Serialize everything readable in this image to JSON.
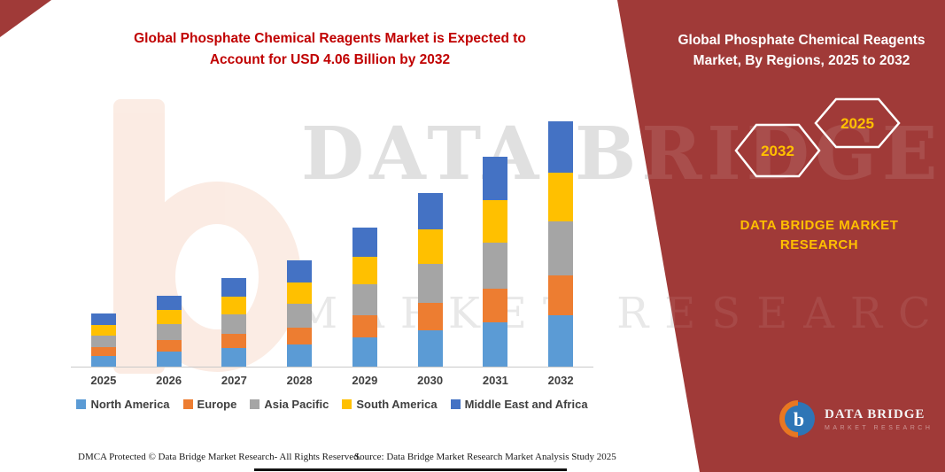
{
  "header": {
    "title_line1": "Global Phosphate Chemical Reagents Market is Expected to",
    "title_line2": "Account for USD 4.06 Billion by 2032"
  },
  "panel": {
    "title_line1": "Global Phosphate Chemical Reagents",
    "title_line2": "Market, By Regions, 2025 to 2032",
    "hexagon_left_year": "2032",
    "hexagon_right_year": "2025",
    "brand_line1": "DATA BRIDGE MARKET",
    "brand_line2": "RESEARCH",
    "logo_text": "DATA BRIDGE",
    "logo_subtext": "MARKET RESEARCH",
    "logo_monogram": "b",
    "bg_color": "#A03A38",
    "accent_gold": "#FFC000"
  },
  "watermark": {
    "line1": "DATA BRIDGE",
    "line2": "MARKET RESEARCH"
  },
  "footer": {
    "left": "DMCA Protected © Data Bridge Market Research-  All Rights Reserved.",
    "right": "Source: Data Bridge Market Research  Market Analysis Study 2025"
  },
  "chart_data": {
    "type": "bar",
    "stacked": true,
    "title": "Global Phosphate Chemical Reagents Market is Expected to Account for USD 4.06 Billion by 2032",
    "unit": "USD Billion",
    "categories": [
      "2025",
      "2026",
      "2027",
      "2028",
      "2029",
      "2030",
      "2031",
      "2032"
    ],
    "series": [
      {
        "name": "North America",
        "color": "#5B9BD5",
        "values": [
          0.18,
          0.25,
          0.31,
          0.37,
          0.49,
          0.61,
          0.73,
          0.85
        ]
      },
      {
        "name": "Europe",
        "color": "#ED7D31",
        "values": [
          0.14,
          0.19,
          0.23,
          0.28,
          0.37,
          0.46,
          0.56,
          0.66
        ]
      },
      {
        "name": "Asia Pacific",
        "color": "#A5A5A5",
        "values": [
          0.19,
          0.26,
          0.32,
          0.39,
          0.51,
          0.64,
          0.77,
          0.89
        ]
      },
      {
        "name": "South America",
        "color": "#FFC000",
        "values": [
          0.18,
          0.23,
          0.29,
          0.35,
          0.46,
          0.58,
          0.7,
          0.81
        ]
      },
      {
        "name": "Middle East and Africa",
        "color": "#4472C4",
        "values": [
          0.19,
          0.24,
          0.31,
          0.37,
          0.48,
          0.61,
          0.72,
          0.85
        ]
      }
    ],
    "totals": [
      0.88,
      1.17,
      1.46,
      1.76,
      2.31,
      2.9,
      3.48,
      4.06
    ],
    "ylim": [
      0,
      4.5
    ],
    "grid": false,
    "legend_position": "bottom"
  }
}
